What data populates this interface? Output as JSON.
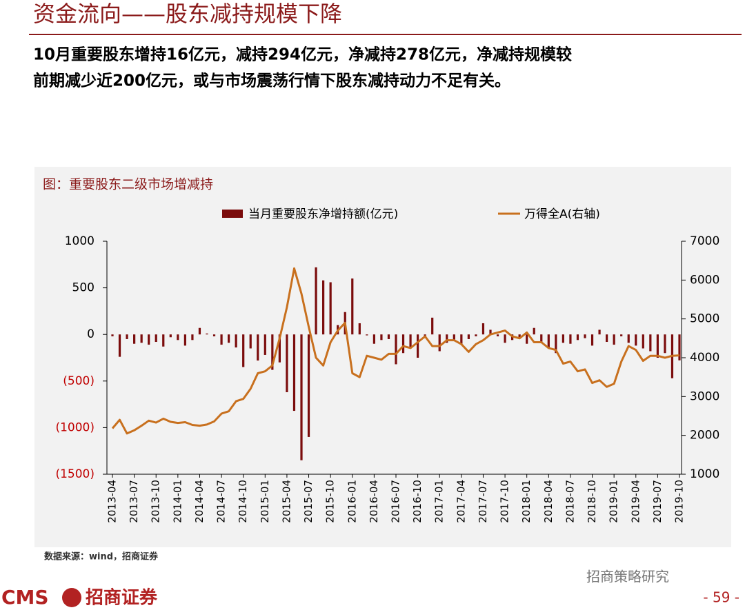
{
  "header": {
    "title": "资金流向——股东减持规模下降"
  },
  "body": [
    "10月重要股东增持16亿元，减持294亿元，净减持278亿元，净减持规模较",
    "前期减少近200亿元，或与市场震荡行情下股东减持动力不足有关。"
  ],
  "chart_data": {
    "type": "combo",
    "title": "图：重要股东二级市场增减持",
    "categories": [
      "2013-04",
      null,
      null,
      "2013-07",
      null,
      null,
      "2013-10",
      null,
      null,
      "2014-01",
      null,
      null,
      "2014-04",
      null,
      null,
      "2014-07",
      null,
      null,
      "2014-10",
      null,
      null,
      "2015-01",
      null,
      null,
      "2015-04",
      null,
      null,
      "2015-07",
      null,
      null,
      "2015-10",
      null,
      null,
      "2016-01",
      null,
      null,
      "2016-04",
      null,
      null,
      "2016-07",
      null,
      null,
      "2016-10",
      null,
      null,
      "2017-01",
      null,
      null,
      "2017-04",
      null,
      null,
      "2017-07",
      null,
      null,
      "2017-10",
      null,
      null,
      "2018-01",
      null,
      null,
      "2018-04",
      null,
      null,
      "2018-07",
      null,
      null,
      "2018-10",
      null,
      null,
      "2019-01",
      null,
      null,
      "2019-04",
      null,
      null,
      "2019-07",
      null,
      null,
      "2019-10"
    ],
    "series": [
      {
        "name": "当月重要股东净增持额(亿元)",
        "type": "bar",
        "color": "#7b0c0c",
        "values": [
          -20,
          -240,
          -50,
          -100,
          -90,
          -110,
          -80,
          -130,
          -30,
          -60,
          -120,
          -60,
          70,
          10,
          -20,
          -110,
          -90,
          -140,
          -350,
          -150,
          -280,
          -220,
          -380,
          -300,
          -620,
          -820,
          -1350,
          -1100,
          720,
          580,
          560,
          100,
          240,
          600,
          120,
          -10,
          -100,
          -60,
          -50,
          -320,
          -200,
          -150,
          -250,
          -40,
          180,
          -180,
          -90,
          -60,
          -100,
          -50,
          -20,
          120,
          50,
          -20,
          -90,
          -60,
          -30,
          -100,
          70,
          -80,
          -150,
          -200,
          -90,
          -100,
          -60,
          -40,
          -120,
          50,
          -80,
          -110,
          -20,
          -90,
          -120,
          -150,
          -180,
          -250,
          -200,
          -470,
          -278
        ]
      },
      {
        "name": "万得全A(右轴)",
        "type": "line",
        "axis": "y2",
        "color": "#c8701e",
        "values": [
          2180,
          2400,
          2050,
          2130,
          2250,
          2380,
          2330,
          2430,
          2350,
          2320,
          2340,
          2270,
          2250,
          2280,
          2360,
          2560,
          2620,
          2880,
          2940,
          3200,
          3600,
          3650,
          3800,
          4500,
          5300,
          6300,
          5650,
          4800,
          4000,
          3800,
          4400,
          4700,
          4900,
          3600,
          3500,
          4050,
          4000,
          3950,
          4100,
          4100,
          4300,
          4250,
          4400,
          4550,
          4300,
          4300,
          4450,
          4450,
          4350,
          4150,
          4350,
          4450,
          4600,
          4650,
          4700,
          4550,
          4500,
          4650,
          4400,
          4400,
          4250,
          4200,
          3850,
          3900,
          3650,
          3700,
          3350,
          3420,
          3250,
          3330,
          3900,
          4300,
          4200,
          3920,
          4050,
          4050,
          4000,
          4050,
          4060
        ]
      }
    ],
    "ylim": [
      -1500,
      1000
    ],
    "yticks": [
      {
        "value": -1500,
        "label": "(1500)"
      },
      {
        "value": -1000,
        "label": "(1000)"
      },
      {
        "value": -500,
        "label": "(500)"
      },
      0,
      500,
      1000
    ],
    "negative_tick_color": "#c00000",
    "y2lim": [
      1000,
      7000
    ],
    "y2ticks": [
      1000,
      2000,
      3000,
      4000,
      5000,
      6000,
      7000
    ],
    "source": "数据来源：wind，招商证券"
  },
  "footer": {
    "logo_latin": "CMS",
    "logo_text": "招商证券",
    "watermark": "招商策略研究",
    "page_number": "- 59 -"
  }
}
